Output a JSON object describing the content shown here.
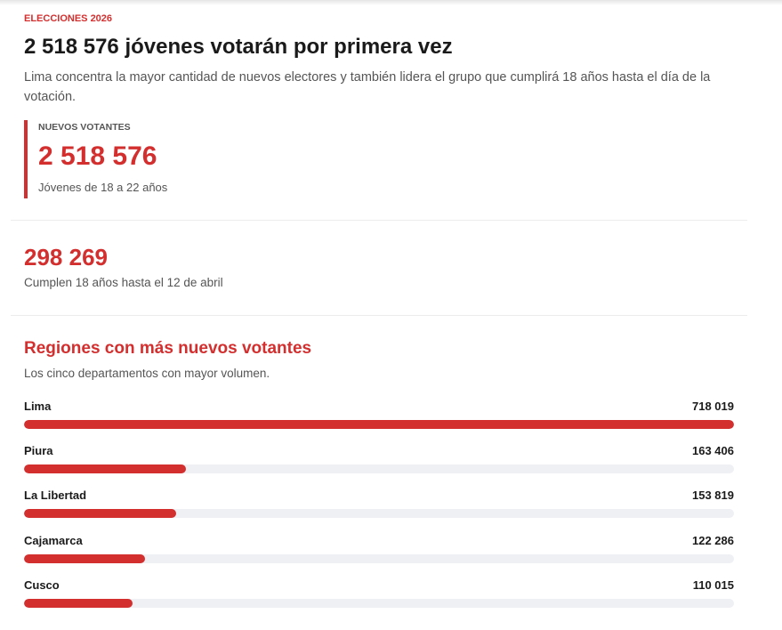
{
  "kicker": "ELECCIONES 2026",
  "headline": "2 518 576 jóvenes votarán por primera vez",
  "dek": "Lima concentra la mayor cantidad de nuevos electores y también lidera el grupo que cumplirá 18 años hasta el día de la votación.",
  "highlight": {
    "label": "NUEVOS VOTANTES",
    "value": "2 518 576",
    "caption": "Jóvenes de 18 a 22 años"
  },
  "stat": {
    "value": "298 269",
    "caption": "Cumplen 18 años hasta el 12 de abril"
  },
  "colors": {
    "accent": "#d32f2f",
    "track": "#eef0f4",
    "text": "#1a1a1a",
    "muted": "#555555"
  },
  "chart_data": {
    "type": "bar",
    "orientation": "horizontal",
    "title": "Regiones con más nuevos votantes",
    "subtitle": "Los cinco departamentos con mayor volumen.",
    "categories": [
      "Lima",
      "Piura",
      "La Libertad",
      "Cajamarca",
      "Cusco"
    ],
    "values": [
      718019,
      163406,
      153819,
      122286,
      110015
    ],
    "value_labels": [
      "718 019",
      "163 406",
      "153 819",
      "122 286",
      "110 015"
    ],
    "xlim": [
      0,
      718019
    ],
    "grid": false,
    "legend": "none"
  }
}
